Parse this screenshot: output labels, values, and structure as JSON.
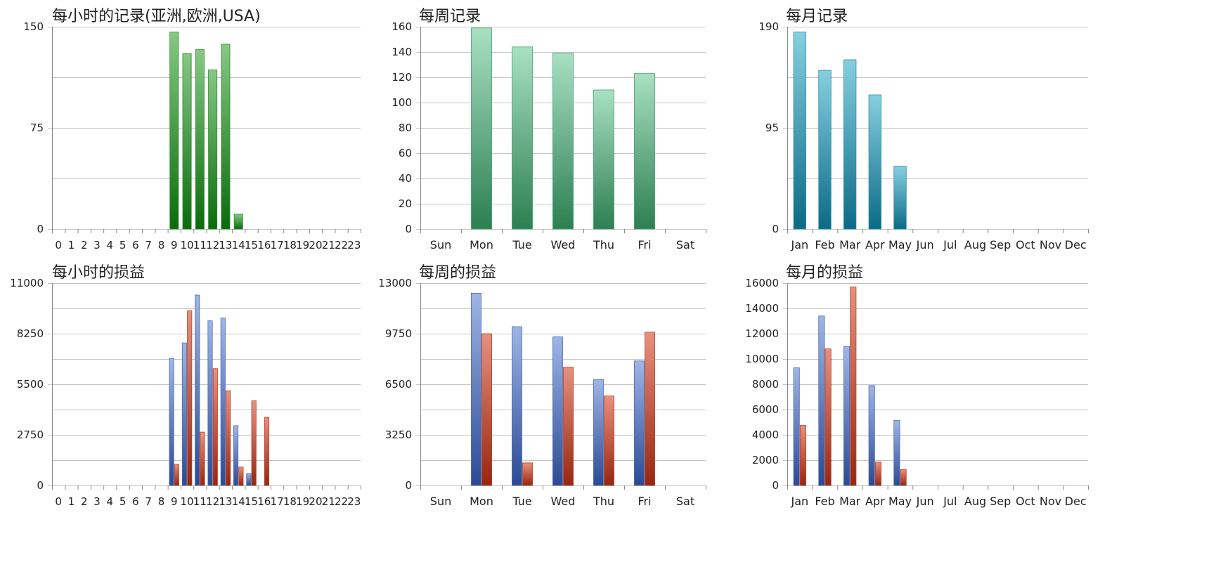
{
  "colors": {
    "green_top": "#85c985",
    "green_bot": "#0b6b0b",
    "mint_top": "#a9e0c2",
    "mint_bot": "#2d7f52",
    "teal_top": "#86cfe0",
    "teal_bot": "#0b6a86",
    "blue_top": "#9eb5e6",
    "blue_bot": "#2b4a94",
    "red_top": "#e8907e",
    "red_bot": "#97260f",
    "grid": "#c4c4c4",
    "axis": "#888888"
  },
  "chart_data": [
    {
      "type": "bar",
      "title": "每小时的记录(亚洲,欧洲,USA)",
      "categories": [
        "0",
        "1",
        "2",
        "3",
        "4",
        "5",
        "6",
        "7",
        "8",
        "9",
        "10",
        "11",
        "12",
        "13",
        "14",
        "15",
        "16",
        "17",
        "18",
        "19",
        "20",
        "21",
        "22",
        "23"
      ],
      "series": [
        {
          "values": [
            0,
            0,
            0,
            0,
            0,
            0,
            0,
            0,
            0,
            146,
            130,
            133,
            118,
            137,
            11,
            0,
            0,
            0,
            0,
            0,
            0,
            0,
            0,
            0
          ]
        }
      ],
      "yticks": [
        0,
        75,
        150
      ],
      "ylim": [
        0,
        150
      ],
      "grid": true
    },
    {
      "type": "bar",
      "title": "每周记录",
      "categories": [
        "Sun",
        "Mon",
        "Tue",
        "Wed",
        "Thu",
        "Fri",
        "Sat"
      ],
      "series": [
        {
          "values": [
            0,
            159,
            144,
            139,
            110,
            123,
            0
          ]
        }
      ],
      "yticks": [
        0,
        20,
        40,
        60,
        80,
        100,
        120,
        140,
        160
      ],
      "ylim": [
        0,
        160
      ],
      "grid": true
    },
    {
      "type": "bar",
      "title": "每月记录",
      "categories": [
        "Jan",
        "Feb",
        "Mar",
        "Apr",
        "May",
        "Jun",
        "Jul",
        "Aug",
        "Sep",
        "Oct",
        "Nov",
        "Dec"
      ],
      "series": [
        {
          "values": [
            185,
            149,
            159,
            126,
            59,
            0,
            0,
            0,
            0,
            0,
            0,
            0
          ]
        }
      ],
      "yticks": [
        0,
        95,
        190
      ],
      "ylim": [
        0,
        190
      ],
      "grid": true
    },
    {
      "type": "bar",
      "title": "每小时的损益",
      "categories": [
        "0",
        "1",
        "2",
        "3",
        "4",
        "5",
        "6",
        "7",
        "8",
        "9",
        "10",
        "11",
        "12",
        "13",
        "14",
        "15",
        "16",
        "17",
        "18",
        "19",
        "20",
        "21",
        "22",
        "23"
      ],
      "series": [
        {
          "values": [
            0,
            0,
            0,
            0,
            0,
            0,
            0,
            0,
            0,
            6900,
            7750,
            10350,
            8950,
            9100,
            3250,
            650,
            0,
            0,
            0,
            0,
            0,
            0,
            0,
            0
          ]
        },
        {
          "values": [
            0,
            0,
            0,
            0,
            0,
            0,
            0,
            0,
            0,
            1150,
            9500,
            2900,
            6350,
            5150,
            1000,
            4600,
            3700,
            0,
            0,
            0,
            0,
            0,
            0,
            0
          ]
        }
      ],
      "yticks": [
        0,
        2750,
        5500,
        8250,
        11000
      ],
      "ylim": [
        0,
        11000
      ],
      "grid": true
    },
    {
      "type": "bar",
      "title": "每周的损益",
      "categories": [
        "Sun",
        "Mon",
        "Tue",
        "Wed",
        "Thu",
        "Fri",
        "Sat"
      ],
      "series": [
        {
          "values": [
            0,
            12350,
            10200,
            9550,
            6800,
            8000,
            0
          ]
        },
        {
          "values": [
            0,
            9750,
            1450,
            7600,
            5750,
            9850,
            0
          ]
        }
      ],
      "yticks": [
        0,
        3250,
        6500,
        9750,
        13000
      ],
      "ylim": [
        0,
        13000
      ],
      "grid": true
    },
    {
      "type": "bar",
      "title": "每月的损益",
      "categories": [
        "Jan",
        "Feb",
        "Mar",
        "Apr",
        "May",
        "Jun",
        "Jul",
        "Aug",
        "Sep",
        "Oct",
        "Nov",
        "Dec"
      ],
      "series": [
        {
          "values": [
            9300,
            13400,
            11000,
            7900,
            5150,
            0,
            0,
            0,
            0,
            0,
            0,
            0
          ]
        },
        {
          "values": [
            4750,
            10800,
            15700,
            1850,
            1250,
            0,
            0,
            0,
            0,
            0,
            0,
            0
          ]
        }
      ],
      "yticks": [
        0,
        2000,
        4000,
        6000,
        8000,
        10000,
        12000,
        14000,
        16000
      ],
      "ylim": [
        0,
        16000
      ],
      "grid": true
    }
  ]
}
